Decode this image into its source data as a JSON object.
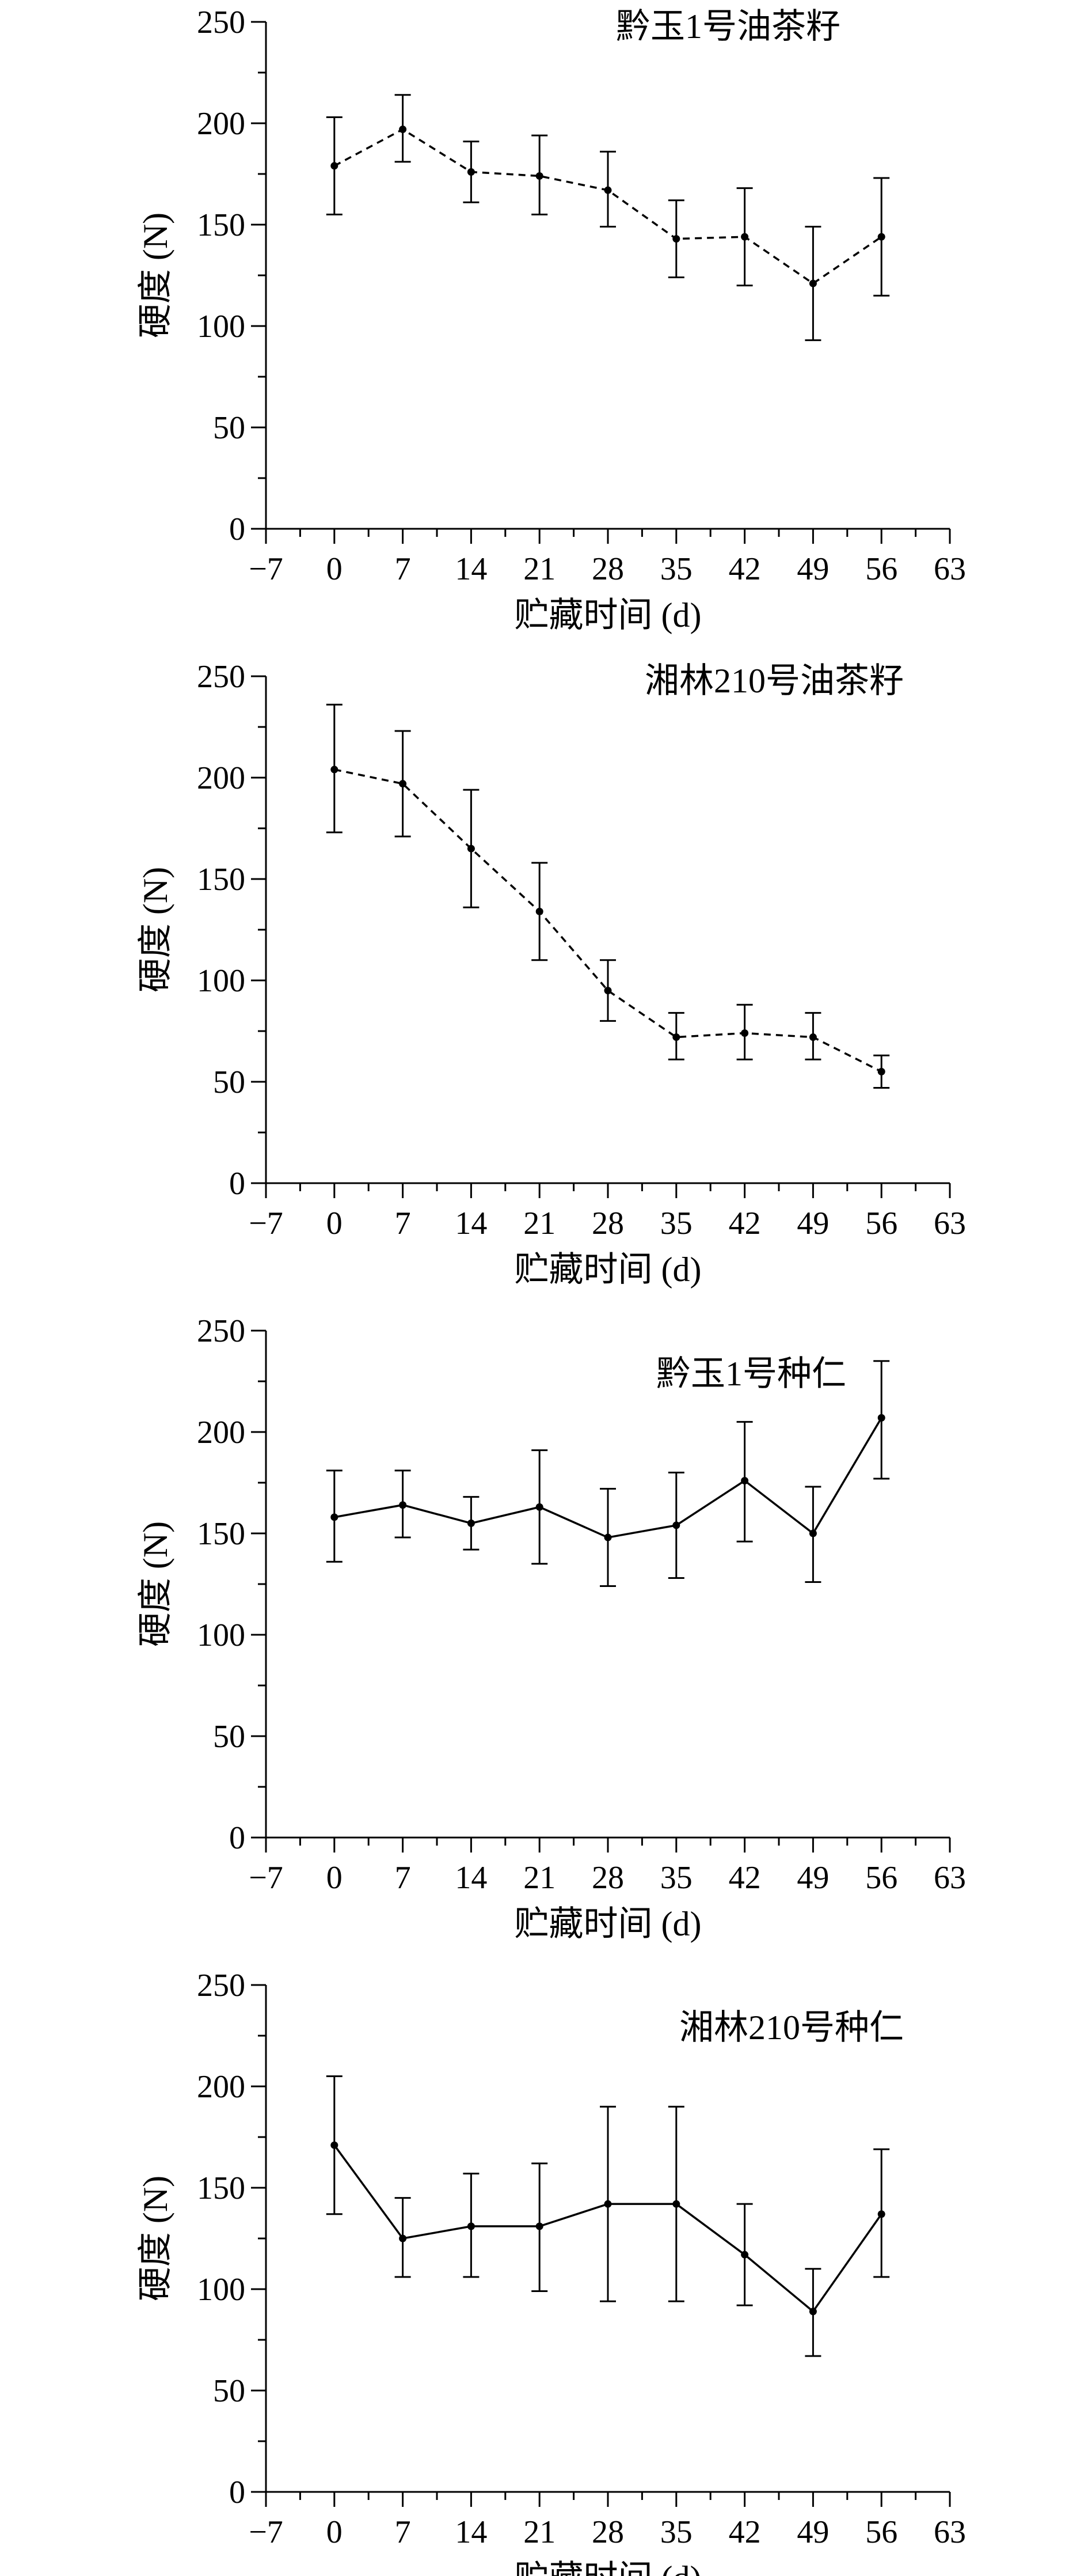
{
  "chart_data": [
    {
      "type": "line",
      "title": "黔玉1号油茶籽",
      "xlabel": "贮藏时间 (d)",
      "ylabel": "硬度 (N)",
      "xlim": [
        -7,
        63
      ],
      "ylim": [
        0,
        250
      ],
      "xticks": [
        -7,
        0,
        7,
        14,
        21,
        28,
        35,
        42,
        49,
        56,
        63
      ],
      "xtick_labels": [
        "−7",
        "0",
        "7",
        "14",
        "21",
        "28",
        "35",
        "42",
        "49",
        "56",
        "63"
      ],
      "yticks": [
        0,
        50,
        100,
        150,
        200,
        250
      ],
      "line_style": "dashed",
      "grid": false,
      "x": [
        0,
        7,
        14,
        21,
        28,
        35,
        42,
        49,
        56
      ],
      "y": [
        179,
        197,
        176,
        174,
        167,
        143,
        144,
        121,
        144
      ],
      "yerr_low": [
        155,
        181,
        161,
        155,
        149,
        124,
        120,
        93,
        115
      ],
      "yerr_high": [
        203,
        214,
        191,
        194,
        186,
        162,
        168,
        149,
        173
      ]
    },
    {
      "type": "line",
      "title": "湘林210号油茶籽",
      "xlabel": "贮藏时间 (d)",
      "ylabel": "硬度 (N)",
      "xlim": [
        -7,
        63
      ],
      "ylim": [
        0,
        250
      ],
      "xticks": [
        -7,
        0,
        7,
        14,
        21,
        28,
        35,
        42,
        49,
        56,
        63
      ],
      "xtick_labels": [
        "−7",
        "0",
        "7",
        "14",
        "21",
        "28",
        "35",
        "42",
        "49",
        "56",
        "63"
      ],
      "yticks": [
        0,
        50,
        100,
        150,
        200,
        250
      ],
      "line_style": "dashed",
      "grid": false,
      "x": [
        0,
        7,
        14,
        21,
        28,
        35,
        42,
        49,
        56
      ],
      "y": [
        204,
        197,
        165,
        134,
        95,
        72,
        74,
        72,
        55
      ],
      "yerr_low": [
        173,
        171,
        136,
        110,
        80,
        61,
        61,
        61,
        47
      ],
      "yerr_high": [
        236,
        223,
        194,
        158,
        110,
        84,
        88,
        84,
        63
      ]
    },
    {
      "type": "line",
      "title": "黔玉1号种仁",
      "xlabel": "贮藏时间 (d)",
      "ylabel": "硬度 (N)",
      "xlim": [
        -7,
        63
      ],
      "ylim": [
        0,
        250
      ],
      "xticks": [
        -7,
        0,
        7,
        14,
        21,
        28,
        35,
        42,
        49,
        56,
        63
      ],
      "xtick_labels": [
        "−7",
        "0",
        "7",
        "14",
        "21",
        "28",
        "35",
        "42",
        "49",
        "56",
        "63"
      ],
      "yticks": [
        0,
        50,
        100,
        150,
        200,
        250
      ],
      "line_style": "solid",
      "grid": false,
      "x": [
        0,
        7,
        14,
        21,
        28,
        35,
        42,
        49,
        56
      ],
      "y": [
        158,
        164,
        155,
        163,
        148,
        154,
        176,
        150,
        207
      ],
      "yerr_low": [
        136,
        148,
        142,
        135,
        124,
        128,
        146,
        126,
        177
      ],
      "yerr_high": [
        181,
        181,
        168,
        191,
        172,
        180,
        205,
        173,
        235
      ]
    },
    {
      "type": "line",
      "title": "湘林210号种仁",
      "xlabel": "贮藏时间 (d)",
      "ylabel": "硬度 (N)",
      "xlim": [
        -7,
        63
      ],
      "ylim": [
        0,
        250
      ],
      "xticks": [
        -7,
        0,
        7,
        14,
        21,
        28,
        35,
        42,
        49,
        56,
        63
      ],
      "xtick_labels": [
        "−7",
        "0",
        "7",
        "14",
        "21",
        "28",
        "35",
        "42",
        "49",
        "56",
        "63"
      ],
      "yticks": [
        0,
        50,
        100,
        150,
        200,
        250
      ],
      "line_style": "solid",
      "grid": false,
      "x": [
        0,
        7,
        14,
        21,
        28,
        35,
        42,
        49,
        56
      ],
      "y": [
        171,
        125,
        131,
        131,
        142,
        142,
        117,
        89,
        137
      ],
      "yerr_low": [
        137,
        106,
        106,
        99,
        94,
        94,
        92,
        67,
        106
      ],
      "yerr_high": [
        205,
        145,
        157,
        162,
        190,
        190,
        142,
        110,
        169
      ]
    }
  ]
}
